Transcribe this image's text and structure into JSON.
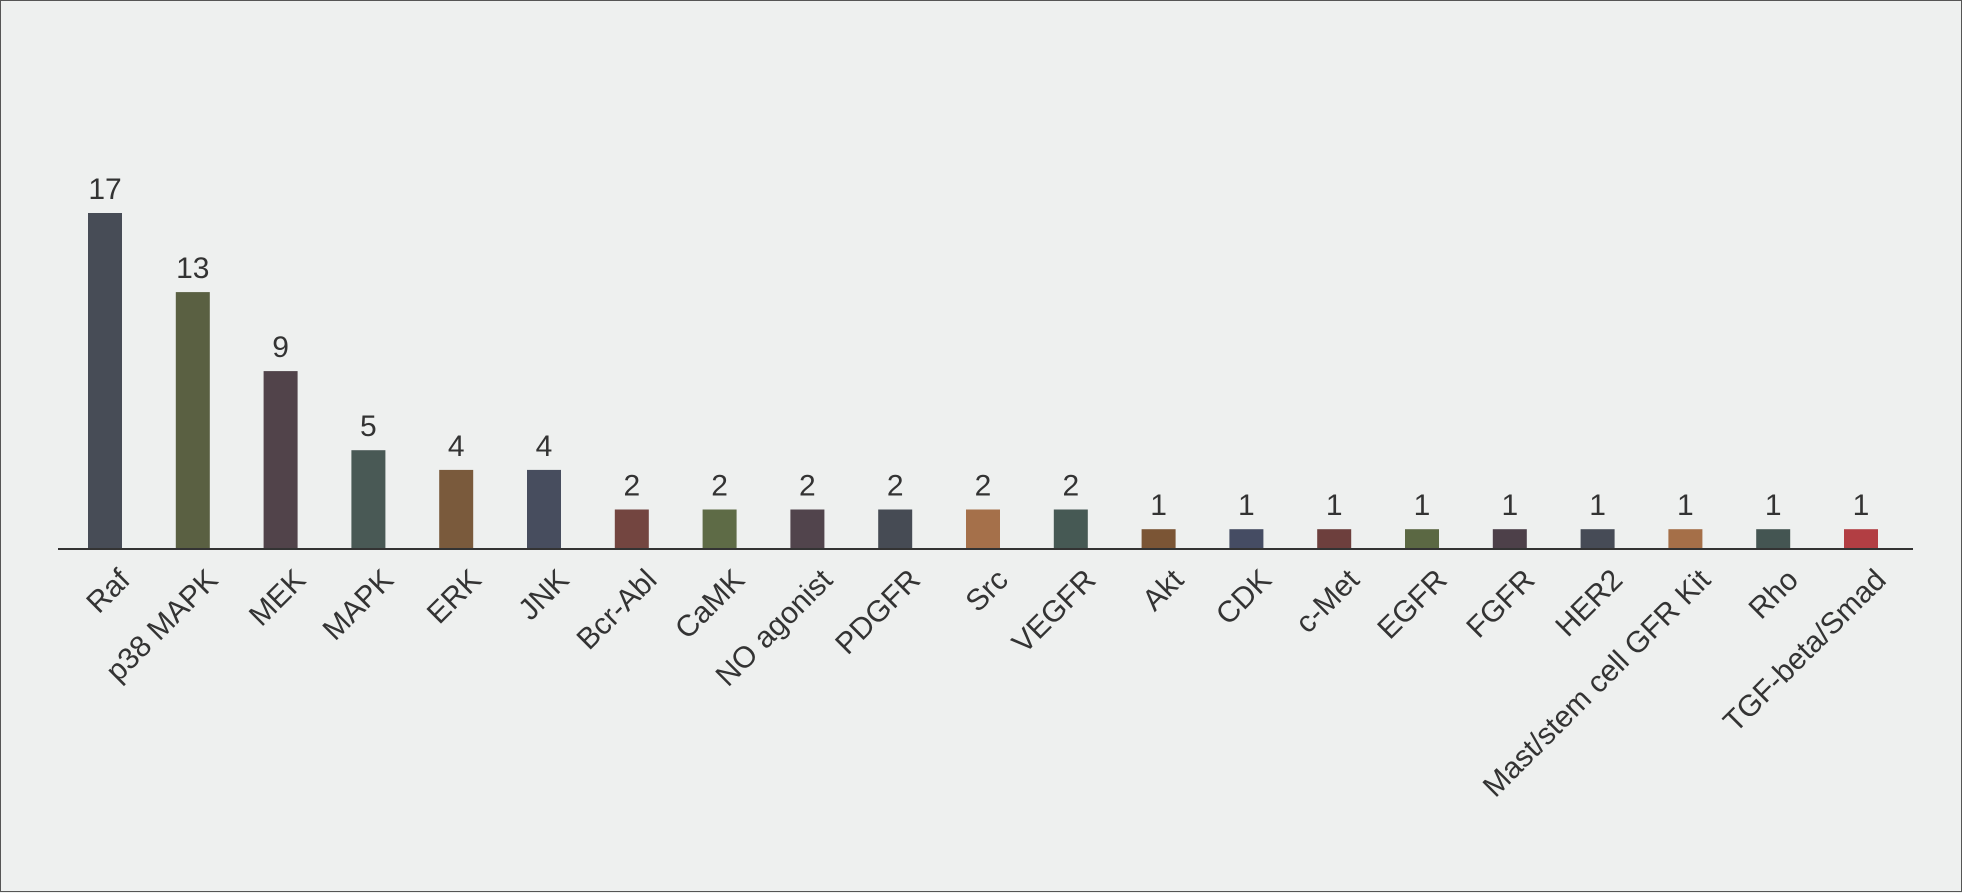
{
  "chart_data": {
    "type": "bar",
    "categories": [
      "Raf",
      "p38 MAPK",
      "MEK",
      "MAPK",
      "ERK",
      "JNK",
      "Bcr-Abl",
      "CaMK",
      "NO agonist",
      "PDGFR",
      "Src",
      "VEGFR",
      "Akt",
      "CDK",
      "c-Met",
      "EGFR",
      "FGFR",
      "HER2",
      "Mast/stem cell GFR Kit",
      "Rho",
      "TGF-beta/Smad"
    ],
    "values": [
      17,
      13,
      9,
      5,
      4,
      4,
      2,
      2,
      2,
      2,
      2,
      2,
      1,
      1,
      1,
      1,
      1,
      1,
      1,
      1,
      1
    ],
    "colors": [
      "#474c56",
      "#5a6042",
      "#51434a",
      "#495955",
      "#7a5a3c",
      "#474d5e",
      "#734540",
      "#5e6b46",
      "#51444c",
      "#464b54",
      "#a5704a",
      "#465954",
      "#7b5535",
      "#454c63",
      "#6d3f3d",
      "#5b6843",
      "#4d4049",
      "#464b56",
      "#a56f48",
      "#445552",
      "#b23e43"
    ],
    "title": "",
    "xlabel": "",
    "ylabel": "",
    "ylim": [
      0,
      17
    ],
    "grid": false,
    "legend": "none"
  }
}
